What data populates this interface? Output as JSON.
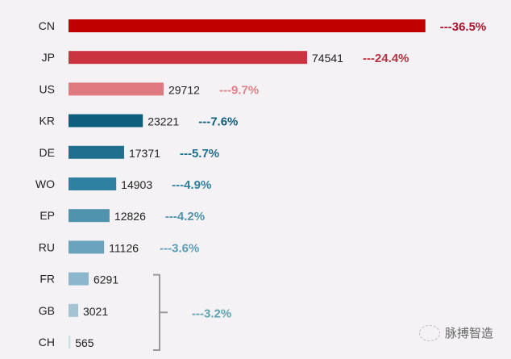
{
  "chart_data": {
    "type": "bar",
    "orientation": "horizontal",
    "title": "",
    "xlabel": "",
    "ylabel": "",
    "categories": [
      "CN",
      "JP",
      "US",
      "KR",
      "DE",
      "WO",
      "EP",
      "RU",
      "FR",
      "GB",
      "CH"
    ],
    "values": [
      111500,
      74541,
      29712,
      23221,
      17371,
      14903,
      12826,
      11126,
      6291,
      3021,
      565
    ],
    "value_labels": [
      "",
      "74541",
      "29712",
      "23221",
      "17371",
      "14903",
      "12826",
      "11126",
      "6291",
      "3021",
      "565"
    ],
    "share_labels": [
      "---36.5%",
      "---24.4%",
      "---9.7%",
      "---7.6%",
      "---5.7%",
      "---4.9%",
      "---4.2%",
      "---3.6%",
      "",
      "",
      ""
    ],
    "group_share_label": "---3.2%",
    "group_members": [
      "FR",
      "GB",
      "CH"
    ],
    "colors": [
      "#c00000",
      "#cc3340",
      "#e07a80",
      "#0e5e7e",
      "#1f6f8e",
      "#2e81a0",
      "#4f93ae",
      "#6aa3bc",
      "#8cb6cb",
      "#a3c4d4",
      "#c8dde6"
    ],
    "share_colors": [
      "#b0102a",
      "#b8323e",
      "#e08088",
      "#0e5e7e",
      "#1f6f8e",
      "#2e81a0",
      "#4f93ae",
      "#5b9db8",
      "#5fa3b0",
      "#5fa3b0",
      "#5fa3b0"
    ],
    "grid": false,
    "legend": "none"
  },
  "watermark": "脉搏智造"
}
